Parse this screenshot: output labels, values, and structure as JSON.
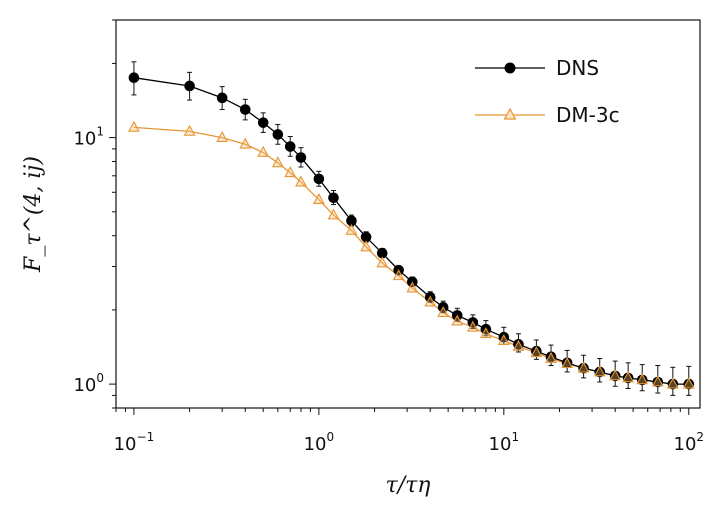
{
  "chart_data": {
    "type": "line",
    "xscale": "log",
    "yscale": "log",
    "xlim": [
      0.08,
      115
    ],
    "ylim": [
      0.8,
      30
    ],
    "xlabel": "τ/τη",
    "ylabel": "F_τ^(4, ij)",
    "x_ticks": [
      {
        "base": "10",
        "exp": "−1"
      },
      {
        "base": "10",
        "exp": "0"
      },
      {
        "base": "10",
        "exp": "1"
      },
      {
        "base": "10",
        "exp": "2"
      }
    ],
    "y_ticks": [
      {
        "base": "10",
        "exp": "0"
      },
      {
        "base": "10",
        "exp": "1"
      }
    ],
    "legend_position": "top-right",
    "grid": false,
    "x": [
      0.1,
      0.2,
      0.3,
      0.4,
      0.5,
      0.6,
      0.7,
      0.8,
      1.0,
      1.2,
      1.5,
      1.8,
      2.2,
      2.7,
      3.2,
      4.0,
      4.7,
      5.6,
      6.8,
      8.0,
      10,
      12,
      15,
      18,
      22,
      27,
      33,
      40,
      47,
      56,
      68,
      82,
      100
    ],
    "series": [
      {
        "name": "DNS",
        "color": "#000000",
        "marker": "circle",
        "values": [
          17.5,
          16.2,
          14.5,
          13.0,
          11.5,
          10.3,
          9.2,
          8.3,
          6.8,
          5.7,
          4.6,
          3.95,
          3.4,
          2.9,
          2.6,
          2.25,
          2.05,
          1.9,
          1.78,
          1.67,
          1.55,
          1.45,
          1.36,
          1.29,
          1.22,
          1.16,
          1.12,
          1.08,
          1.06,
          1.04,
          1.02,
          1.0,
          1.0
        ],
        "err_up": [
          2.8,
          2.2,
          1.6,
          1.3,
          1.1,
          1.0,
          0.9,
          0.8,
          0.5,
          0.4,
          0.25,
          0.2,
          0.15,
          0.12,
          0.12,
          0.12,
          0.12,
          0.13,
          0.13,
          0.14,
          0.15,
          0.15,
          0.15,
          0.15,
          0.15,
          0.15,
          0.15,
          0.16,
          0.16,
          0.16,
          0.17,
          0.17,
          0.18
        ],
        "err_down": [
          2.6,
          2.0,
          1.5,
          1.2,
          1.0,
          0.9,
          0.8,
          0.7,
          0.45,
          0.35,
          0.22,
          0.18,
          0.13,
          0.1,
          0.1,
          0.1,
          0.1,
          0.1,
          0.1,
          0.1,
          0.1,
          0.1,
          0.1,
          0.1,
          0.1,
          0.1,
          0.1,
          0.1,
          0.1,
          0.1,
          0.1,
          0.1,
          0.1
        ]
      },
      {
        "name": "DM-3c",
        "color": "#e69533",
        "marker": "triangle",
        "values": [
          11.0,
          10.6,
          10.0,
          9.4,
          8.7,
          7.9,
          7.2,
          6.6,
          5.6,
          4.85,
          4.2,
          3.6,
          3.1,
          2.75,
          2.45,
          2.15,
          1.95,
          1.8,
          1.7,
          1.6,
          1.5,
          1.42,
          1.34,
          1.27,
          1.21,
          1.16,
          1.12,
          1.08,
          1.06,
          1.04,
          1.02,
          1.0,
          1.0
        ]
      }
    ]
  }
}
